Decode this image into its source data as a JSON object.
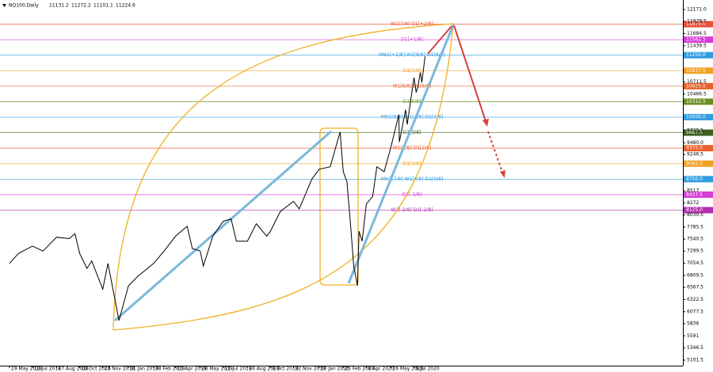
{
  "chart_data": {
    "type": "line",
    "title": "NQ100,Daily",
    "ohlc": [
      11131.2,
      11272.2,
      11101.1,
      11224.6
    ],
    "x": [
      "29 May 2018",
      "15 Jun 2018",
      "12 Jul 2018",
      "1 Aug 2018",
      "27 Aug 2018",
      "20 Sep 2018",
      "1 Oct 2018",
      "10 Oct 2018",
      "24 Oct 2018",
      "2 Nov 2018",
      "23 Nov 2018",
      "3 Dec 2018",
      "24 Dec 2018",
      "11 Jan 2019",
      "30 Jan 2019",
      "28 Feb 2019",
      "20 Mar 2019",
      "11 Apr 2019",
      "3 May 2019",
      "13 May 2019",
      "28 May 2019",
      "3 Jun 2019",
      "21 Jun 2019",
      "11 Jul 2019",
      "26 Jul 2019",
      "5 Aug 2019",
      "26 Aug 2019",
      "12 Sep 2019",
      "2 Oct 2019",
      "9 Oct 2019",
      "28 Oct 2019",
      "22 Nov 2019",
      "3 Dec 2019",
      "27 Dec 2019",
      "10 Jan 2020",
      "31 Jan 2020",
      "19 Feb 2020",
      "25 Feb 2020",
      "3 Mar 2020",
      "9 Mar 2020",
      "16 Mar 2020",
      "23 Mar 2020",
      "26 Mar 2020",
      "1 Apr 2020",
      "9 Apr 2020",
      "21 Apr 2020",
      "29 Apr 2020",
      "13 May 2020",
      "26 May 2020",
      "10 Jun 2020",
      "11 Jun 2020",
      "23 Jun 2020",
      "26 Jun 2020",
      "9 Jul 2020",
      "13 Jul 2020",
      "16 Jul 2020",
      "21 Jul 2020",
      "24 Jul 2020",
      "30 Jul 2020"
    ],
    "series": [
      {
        "color": "#000000",
        "values": [
          7050,
          7250,
          7400,
          7300,
          7580,
          7550,
          7650,
          7250,
          6950,
          7100,
          6530,
          7050,
          5900,
          6600,
          6800,
          7050,
          7300,
          7600,
          7800,
          7350,
          7300,
          7000,
          7600,
          7900,
          7950,
          7500,
          7500,
          7850,
          7600,
          7700,
          8100,
          8300,
          8150,
          8750,
          8950,
          9000,
          9700,
          8900,
          8700,
          7950,
          7000,
          6600,
          7700,
          7500,
          8250,
          8400,
          9000,
          8900,
          9400,
          10050,
          9500,
          10150,
          9850,
          10800,
          10500,
          10600,
          10900,
          10700,
          11224.6
        ]
      }
    ],
    "xlim": [
      "11 May 2018",
      "4 Dec 2021"
    ],
    "xticks": [
      "29 May 2018",
      "12 Jul 2018",
      "27 Aug 2018",
      "10 Oct 2018",
      "23 Nov 2018",
      "11 Jan 2019",
      "28 Feb 2019",
      "11 Apr 2019",
      "28 May 2019",
      "11 Jul 2019",
      "26 Aug 2019",
      "9 Oct 2019",
      "22 Nov 2019",
      "10 Jan 2020",
      "25 Feb 2020",
      "9 Apr 2020",
      "26 May 2020",
      "9 Jul 2020"
    ],
    "ylim": [
      4989,
      12362.5
    ],
    "yticks": [
      {
        "value": 12171,
        "label": "12171.0"
      },
      {
        "value": 11929.5,
        "label": "11929.5"
      },
      {
        "value": 11684.5,
        "label": "11684.5"
      },
      {
        "value": 11439.5,
        "label": "11439.5"
      },
      {
        "value": 10711.5,
        "label": "10711.5"
      },
      {
        "value": 10466.5,
        "label": "10466.5"
      },
      {
        "value": 9725.5,
        "label": "9725.5"
      },
      {
        "value": 9480,
        "label": "9480.0"
      },
      {
        "value": 9246.5,
        "label": "9246.5"
      },
      8517,
      8272,
      {
        "value": 8030.5,
        "label": "8030.5"
      },
      {
        "value": 7785.5,
        "label": "7785.5"
      },
      {
        "value": 7540.5,
        "label": "7540.5"
      },
      {
        "value": 7299.5,
        "label": "7299.5"
      },
      {
        "value": 7054.5,
        "label": "7054.5"
      },
      {
        "value": 6809.5,
        "label": "6809.5"
      },
      {
        "value": 6567.5,
        "label": "6567.5"
      },
      {
        "value": 6322.5,
        "label": "6322.5"
      },
      {
        "value": 6077.5,
        "label": "6077.5"
      },
      5836,
      5591,
      {
        "value": 5346.5,
        "label": "5346.5"
      },
      {
        "value": 5101.5,
        "label": "5101.5"
      }
    ],
    "levels": [
      {
        "price": 11875,
        "price_label": "11875.0",
        "text": "W1[7/8] D1[+2/8]",
        "color": "#e8503a"
      },
      {
        "price": 11562.5,
        "price_label": "11562.5",
        "text": "D1[+1/8]",
        "color": "#d63cd6"
      },
      {
        "price": 11250,
        "price_label": "11250.0",
        "text": "MN1[+1/8] W1[8/8] D1[8/8]",
        "color": "#2f9be0"
      },
      {
        "price": 10937.5,
        "price_label": "10937.5",
        "text": "D1[7/8]",
        "color": "#f0a020"
      },
      {
        "price": 10625,
        "price_label": "10625.0",
        "text": "W1[6/8] D1[6/8]",
        "color": "#e8602a"
      },
      {
        "price": 10312.5,
        "price_label": "10312.5",
        "text": "D1[5/8]",
        "color": "#6b8e23"
      },
      {
        "price": 10000,
        "price_label": "10000.0",
        "text": "MN1[8/8] W1[4/8] D1[4/8]",
        "color": "#2f9be0"
      },
      {
        "price": 9687.5,
        "price_label": "9687.5",
        "text": "D1[3/8]",
        "color": "#3f6020"
      },
      {
        "price": 9375,
        "price_label": "9375.0",
        "text": "W1[2/8] D1[2/8]",
        "color": "#e8602a"
      },
      {
        "price": 9062.5,
        "price_label": "9062.5",
        "text": "D1[1/8]",
        "color": "#f0a020"
      },
      {
        "price": 8750,
        "price_label": "8750.0",
        "text": "MN1[7/8] W1[0/8] D1[0/8]",
        "color": "#2f9be0"
      },
      {
        "price": 8437.5,
        "price_label": "8437.5",
        "text": "D1[-1/8]",
        "color": "#d63cd6"
      },
      {
        "price": 8125,
        "price_label": "8125.0",
        "text": "W1[-2/8] D1[-2/8]",
        "color": "#b030b0"
      }
    ]
  }
}
